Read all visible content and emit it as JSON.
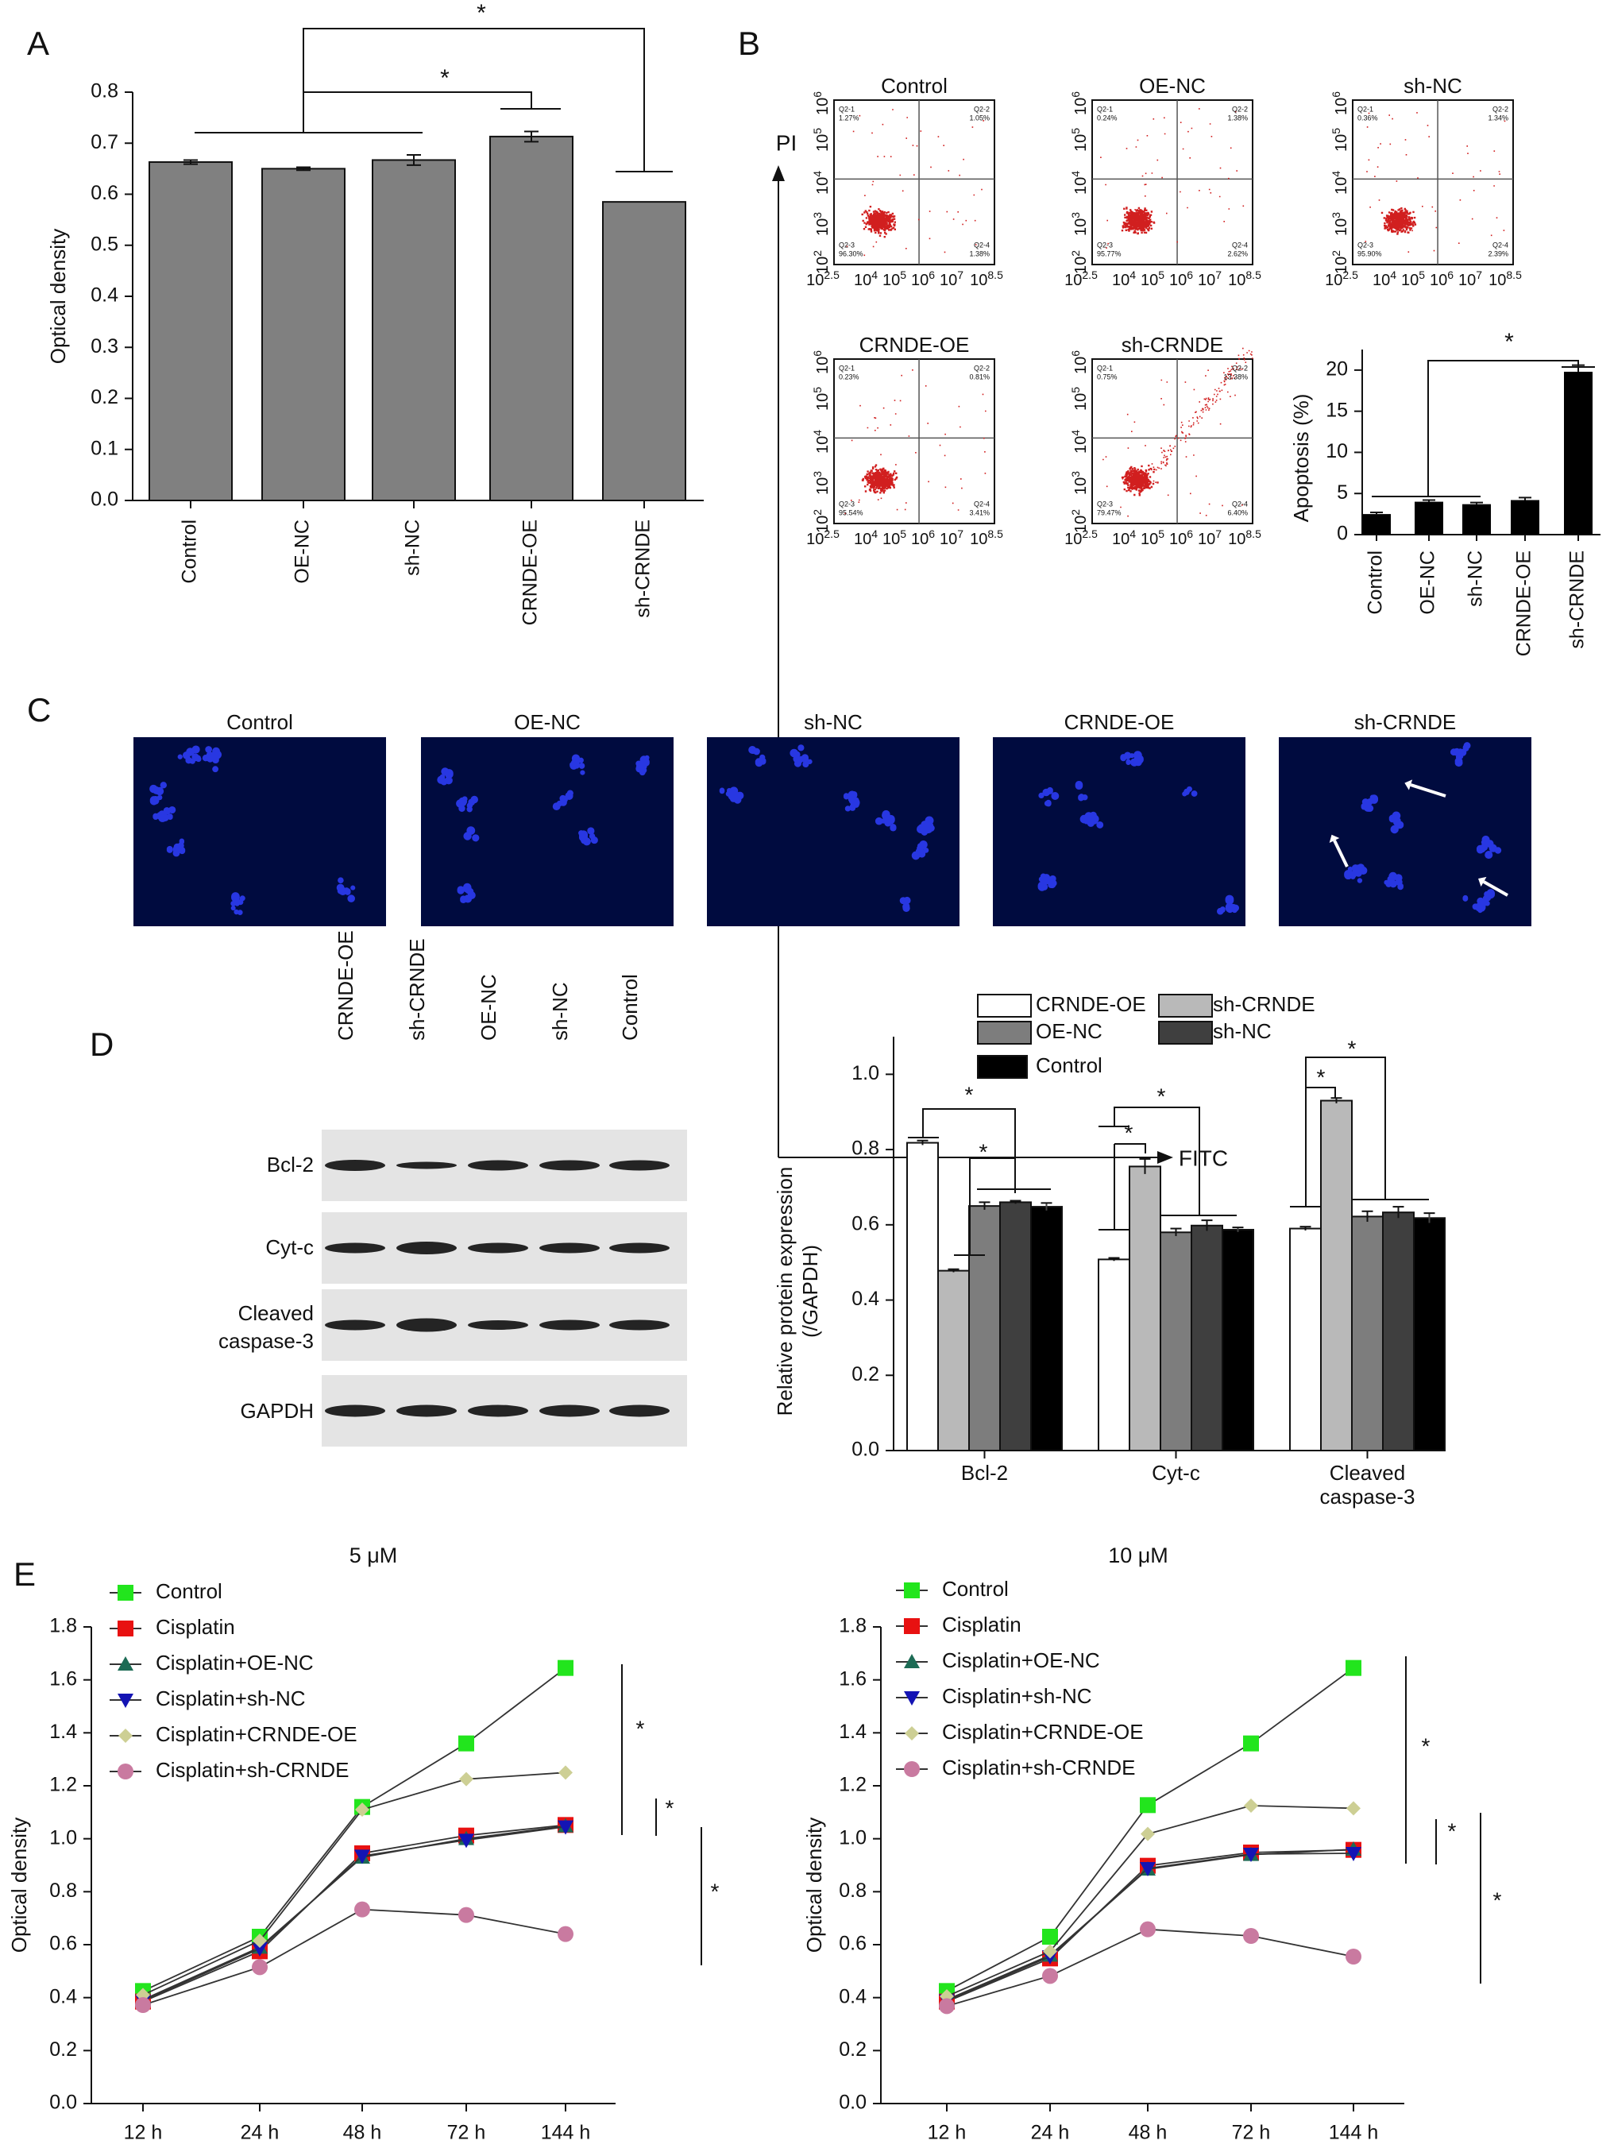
{
  "panel_letters": [
    "A",
    "B",
    "C",
    "D",
    "E"
  ],
  "colors": {
    "axis": "#111111",
    "bar_gray": "#808080",
    "bar_black": "#000000",
    "bar_white": "#ffffff",
    "bar_light": "#b9b9b9",
    "bar_mid": "#7d7d7d",
    "bar_dark": "#3f3f3f",
    "flow_dot": "#d11f1f",
    "flow_gate": "#555555",
    "micro_bg": "#000b3f",
    "nucleus": "#2f3fff",
    "green": "#22e51d",
    "red": "#e81111",
    "teal": "#1d6b55",
    "blue": "#1414b4",
    "khaki": "#cdcf94",
    "pink": "#c97aa0",
    "blot_band": "#141414"
  },
  "panel_a": {
    "chart_data": {
      "type": "bar",
      "categories": [
        "Control",
        "OE-NC",
        "sh-NC",
        "CRNDE-OE",
        "sh-CRNDE"
      ],
      "values": [
        0.663,
        0.65,
        0.667,
        0.713,
        0.585
      ],
      "errors": [
        0.004,
        0.003,
        0.01,
        0.01,
        0.0
      ],
      "ylabel": "Optical density",
      "yticks": [
        "0.0",
        "0.1",
        "0.2",
        "0.3",
        "0.4",
        "0.5",
        "0.6",
        "0.7",
        "0.8"
      ],
      "ylim": [
        0,
        0.8
      ],
      "significance": [
        "*",
        "*"
      ]
    }
  },
  "panel_b": {
    "axis_y": "PI",
    "axis_x": "FITC",
    "y_tick_exponents": [
      "6",
      "5",
      "4",
      "3",
      "2"
    ],
    "x_tick_exponents": [
      "2.5",
      "4",
      "5",
      "6",
      "7",
      "8.5"
    ],
    "tick_base": "10",
    "plots": [
      {
        "title": "Control",
        "q1": "Q2-1",
        "q1v": "1.27%",
        "q2": "Q2-2",
        "q2v": "1.05%",
        "q3": "Q2-3",
        "q3v": "96.30%",
        "q4": "Q2-4",
        "q4v": "1.38%"
      },
      {
        "title": "OE-NC",
        "q1": "Q2-1",
        "q1v": "0.24%",
        "q2": "Q2-2",
        "q2v": "1.38%",
        "q3": "Q2-3",
        "q3v": "95.77%",
        "q4": "Q2-4",
        "q4v": "2.62%"
      },
      {
        "title": "sh-NC",
        "q1": "Q2-1",
        "q1v": "0.36%",
        "q2": "Q2-2",
        "q2v": "1.34%",
        "q3": "Q2-3",
        "q3v": "95.90%",
        "q4": "Q2-4",
        "q4v": "2.39%"
      },
      {
        "title": "CRNDE-OE",
        "q1": "Q2-1",
        "q1v": "0.23%",
        "q2": "Q2-2",
        "q2v": "0.81%",
        "q3": "Q2-3",
        "q3v": "95.54%",
        "q4": "Q2-4",
        "q4v": "3.41%"
      },
      {
        "title": "sh-CRNDE",
        "q1": "Q2-1",
        "q1v": "0.75%",
        "q2": "Q2-2",
        "q2v": "13.38%",
        "q3": "Q2-3",
        "q3v": "79.47%",
        "q4": "Q2-4",
        "q4v": "6.40%"
      }
    ],
    "chart_data": {
      "type": "bar",
      "categories": [
        "Control",
        "OE-NC",
        "sh-NC",
        "CRNDE-OE",
        "sh-CRNDE"
      ],
      "values": [
        2.5,
        4.0,
        3.7,
        4.2,
        19.8
      ],
      "errors": [
        0.2,
        0.2,
        0.2,
        0.3,
        0.8
      ],
      "ylabel": "Apoptosis (%)",
      "yticks": [
        "0",
        "5",
        "10",
        "15",
        "20"
      ],
      "ylim": [
        0,
        22.5
      ],
      "significance": [
        "*"
      ]
    }
  },
  "panel_c": {
    "titles": [
      "Control",
      "OE-NC",
      "sh-NC",
      "CRNDE-OE",
      "sh-CRNDE"
    ]
  },
  "panel_d": {
    "blot_lanes": [
      "CRNDE-OE",
      "sh-CRNDE",
      "OE-NC",
      "sh-NC",
      "Control"
    ],
    "blot_rows": [
      "Bcl-2",
      "Cyt-c",
      "Cleaved caspase-3",
      "GAPDH"
    ],
    "chart_data": {
      "type": "bar",
      "groups": [
        "Bcl-2",
        "Cyt-c",
        "Cleaved\ncaspase-3"
      ],
      "ylabel": "Relative protein expression\n(/GAPDH)",
      "yticks": [
        "0.0",
        "0.2",
        "0.4",
        "0.6",
        "0.8",
        "1.0"
      ],
      "ylim": [
        0,
        1.1
      ],
      "series": [
        {
          "name": "CRNDE-OE",
          "values": [
            0.818,
            0.508,
            0.59
          ],
          "errors": [
            0.006,
            0.004,
            0.005
          ]
        },
        {
          "name": "sh-CRNDE",
          "values": [
            0.478,
            0.755,
            0.93
          ],
          "errors": [
            0.004,
            0.02,
            0.007
          ]
        },
        {
          "name": "OE-NC",
          "values": [
            0.65,
            0.58,
            0.622
          ],
          "errors": [
            0.01,
            0.01,
            0.014
          ]
        },
        {
          "name": "sh-NC",
          "values": [
            0.66,
            0.598,
            0.633
          ],
          "errors": [
            0.004,
            0.014,
            0.015
          ]
        },
        {
          "name": "Control",
          "values": [
            0.648,
            0.587,
            0.618
          ],
          "errors": [
            0.01,
            0.006,
            0.013
          ]
        }
      ],
      "significance": [
        "*",
        "*",
        "*",
        "*",
        "*",
        "*"
      ]
    }
  },
  "panel_e": {
    "legend": [
      "Control",
      "Cisplatin",
      "Cisplatin+OE-NC",
      "Cisplatin+sh-NC",
      "Cisplatin+CRNDE-OE",
      "Cisplatin+sh-CRNDE"
    ],
    "charts": [
      {
        "type": "line",
        "title": "5 μM",
        "x": [
          "12 h",
          "24 h",
          "48 h",
          "72 h",
          "144 h"
        ],
        "ylabel": "Optical density",
        "yticks": [
          "0.0",
          "0.2",
          "0.4",
          "0.6",
          "0.8",
          "1.0",
          "1.2",
          "1.4",
          "1.6",
          "1.8"
        ],
        "ylim": [
          0,
          1.8
        ],
        "series": [
          {
            "name": "Control",
            "values": [
              0.425,
              0.63,
              1.12,
              1.36,
              1.645
            ]
          },
          {
            "name": "Cisplatin",
            "values": [
              0.385,
              0.575,
              0.945,
              1.012,
              1.052
            ]
          },
          {
            "name": "Cisplatin+OE-NC",
            "values": [
              0.392,
              0.59,
              0.93,
              1.0,
              1.048
            ]
          },
          {
            "name": "Cisplatin+sh-NC",
            "values": [
              0.388,
              0.585,
              0.935,
              0.995,
              1.045
            ]
          },
          {
            "name": "Cisplatin+CRNDE-OE",
            "values": [
              0.41,
              0.615,
              1.11,
              1.225,
              1.25
            ]
          },
          {
            "name": "Cisplatin+sh-CRNDE",
            "values": [
              0.372,
              0.515,
              0.733,
              0.712,
              0.64
            ]
          }
        ],
        "significance": [
          "*",
          "*",
          "*"
        ]
      },
      {
        "type": "line",
        "title": "10 μM",
        "x": [
          "12 h",
          "24 h",
          "48 h",
          "72 h",
          "144 h"
        ],
        "ylabel": "Optical density",
        "yticks": [
          "0.0",
          "0.2",
          "0.4",
          "0.6",
          "0.8",
          "1.0",
          "1.2",
          "1.4",
          "1.6",
          "1.8"
        ],
        "ylim": [
          0,
          1.8
        ],
        "series": [
          {
            "name": "Control",
            "values": [
              0.425,
              0.63,
              1.127,
              1.36,
              1.645
            ]
          },
          {
            "name": "Cisplatin",
            "values": [
              0.385,
              0.548,
              0.898,
              0.948,
              0.958
            ]
          },
          {
            "name": "Cisplatin+OE-NC",
            "values": [
              0.392,
              0.56,
              0.885,
              0.94,
              0.96
            ]
          },
          {
            "name": "Cisplatin+sh-NC",
            "values": [
              0.388,
              0.555,
              0.888,
              0.942,
              0.945
            ]
          },
          {
            "name": "Cisplatin+CRNDE-OE",
            "values": [
              0.405,
              0.575,
              1.018,
              1.125,
              1.115
            ]
          },
          {
            "name": "Cisplatin+sh-CRNDE",
            "values": [
              0.368,
              0.482,
              0.658,
              0.633,
              0.555
            ]
          }
        ],
        "significance": [
          "*",
          "*",
          "*"
        ]
      }
    ]
  }
}
